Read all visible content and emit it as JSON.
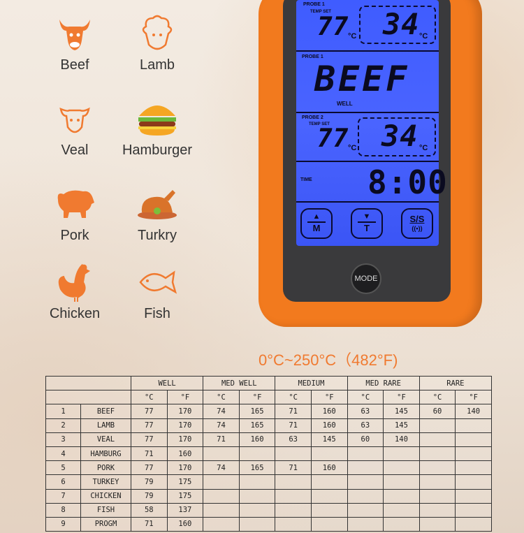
{
  "foods": [
    {
      "label": "Beef",
      "icon": "cow-head-icon"
    },
    {
      "label": "Lamb",
      "icon": "sheep-head-icon"
    },
    {
      "label": "Veal",
      "icon": "calf-head-icon"
    },
    {
      "label": "Hamburger",
      "icon": "hamburger-icon"
    },
    {
      "label": "Pork",
      "icon": "pig-icon"
    },
    {
      "label": "Turkry",
      "icon": "roast-turkey-icon"
    },
    {
      "label": "Chicken",
      "icon": "rooster-icon"
    },
    {
      "label": "Fish",
      "icon": "fish-icon"
    }
  ],
  "lcd": {
    "probe1_label": "PROBE 1",
    "temp_set_label": "TEMP SET",
    "probe1_set": "77",
    "probe1_current": "34",
    "unit": "°C",
    "probe1_meat_label": "PROBE 1",
    "meat": "BEEF",
    "doneness": "WELL",
    "probe2_label": "PROBE 2",
    "probe2_set": "77",
    "probe2_current": "34",
    "time_label": "TIME",
    "time": "8:00",
    "buttons": {
      "up_m": "M",
      "down_t": "T",
      "ss": "S/S"
    }
  },
  "mode_button": "MODE",
  "range_text": "0°C~250°C（482°F)",
  "colors": {
    "accent": "#f07a30",
    "lcd_blue": "#4a64ff"
  },
  "table": {
    "groups": [
      "WELL",
      "MED WELL",
      "MEDIUM",
      "MED RARE",
      "RARE"
    ],
    "units": [
      "°C",
      "°F"
    ],
    "rows": [
      [
        "1",
        "BEEF",
        "77",
        "170",
        "74",
        "165",
        "71",
        "160",
        "63",
        "145",
        "60",
        "140"
      ],
      [
        "2",
        "LAMB",
        "77",
        "170",
        "74",
        "165",
        "71",
        "160",
        "63",
        "145",
        "",
        ""
      ],
      [
        "3",
        "VEAL",
        "77",
        "170",
        "71",
        "160",
        "63",
        "145",
        "60",
        "140",
        "",
        ""
      ],
      [
        "4",
        "HAMBURG",
        "71",
        "160",
        "",
        "",
        "",
        "",
        "",
        "",
        "",
        ""
      ],
      [
        "5",
        "PORK",
        "77",
        "170",
        "74",
        "165",
        "71",
        "160",
        "",
        "",
        "",
        ""
      ],
      [
        "6",
        "TURKEY",
        "79",
        "175",
        "",
        "",
        "",
        "",
        "",
        "",
        "",
        ""
      ],
      [
        "7",
        "CHICKEN",
        "79",
        "175",
        "",
        "",
        "",
        "",
        "",
        "",
        "",
        ""
      ],
      [
        "8",
        "FISH",
        "58",
        "137",
        "",
        "",
        "",
        "",
        "",
        "",
        "",
        ""
      ],
      [
        "9",
        "PROGM",
        "71",
        "160",
        "",
        "",
        "",
        "",
        "",
        "",
        "",
        ""
      ]
    ]
  }
}
